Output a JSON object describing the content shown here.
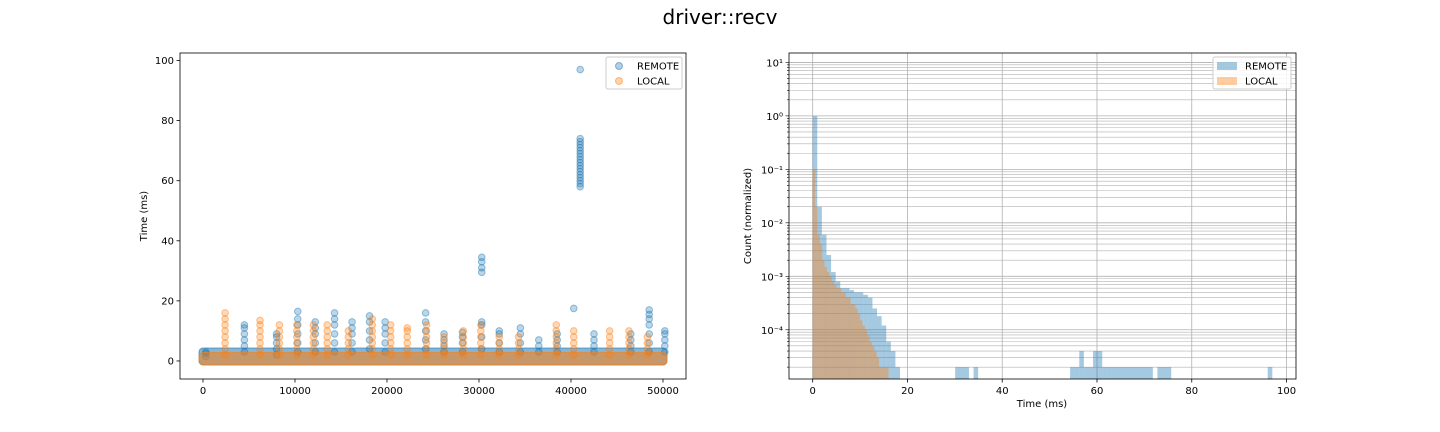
{
  "figure": {
    "title": "driver::recv"
  },
  "colors": {
    "remote": "#1f77b4",
    "local": "#ff7f0e"
  },
  "chart_data": [
    {
      "type": "scatter",
      "title": "",
      "xlabel": "",
      "ylabel": "Time (ms)",
      "xlim": [
        -2500,
        52500
      ],
      "ylim": [
        -6,
        102.5
      ],
      "xticks": [
        0,
        10000,
        20000,
        30000,
        40000,
        50000
      ],
      "xtick_labels": [
        "0",
        "10000",
        "20000",
        "30000",
        "40000",
        "50000"
      ],
      "yticks": [
        0,
        20,
        40,
        60,
        80,
        100
      ],
      "ytick_labels": [
        "0",
        "20",
        "40",
        "60",
        "80",
        "100"
      ],
      "grid": false,
      "legend": {
        "placement": "upper-right",
        "entries": [
          "REMOTE",
          "LOCAL"
        ]
      },
      "series": [
        {
          "name": "REMOTE",
          "color": "#1f77b4",
          "baseline_band": {
            "x_range": [
              0,
              50000
            ],
            "y_range": [
              0,
              3
            ]
          },
          "clusters": [
            {
              "x": 300,
              "values": [
                1.5,
                2.5,
                3
              ]
            },
            {
              "x": 4500,
              "values": [
                3,
                5,
                7,
                9,
                11,
                12
              ]
            },
            {
              "x": 8000,
              "values": [
                2,
                4,
                6,
                8,
                9
              ]
            },
            {
              "x": 10300,
              "values": [
                3,
                6,
                9,
                12,
                14,
                16.5
              ]
            },
            {
              "x": 12200,
              "values": [
                3,
                6,
                9,
                11,
                13
              ]
            },
            {
              "x": 14300,
              "values": [
                3,
                6,
                9,
                12,
                14,
                16
              ]
            },
            {
              "x": 16200,
              "values": [
                3,
                6,
                9,
                11,
                13
              ]
            },
            {
              "x": 18100,
              "values": [
                4,
                7,
                10,
                13,
                15
              ]
            },
            {
              "x": 19800,
              "values": [
                3,
                6,
                9,
                11,
                13
              ]
            },
            {
              "x": 24200,
              "values": [
                4,
                7,
                10,
                13,
                16
              ]
            },
            {
              "x": 26200,
              "values": [
                3,
                5,
                7,
                9
              ]
            },
            {
              "x": 28200,
              "values": [
                3,
                6,
                8,
                9.5
              ]
            },
            {
              "x": 30300,
              "values": [
                4,
                8,
                12,
                13,
                29.5,
                31,
                33,
                34.5
              ]
            },
            {
              "x": 32200,
              "values": [
                3,
                6,
                9,
                10
              ]
            },
            {
              "x": 34500,
              "values": [
                3,
                6,
                9,
                11
              ]
            },
            {
              "x": 36500,
              "values": [
                3,
                5,
                7
              ]
            },
            {
              "x": 38500,
              "values": [
                3,
                5,
                7,
                9
              ]
            },
            {
              "x": 40300,
              "values": [
                17.5
              ]
            },
            {
              "x": 41000,
              "values": [
                58,
                59,
                60,
                61,
                62,
                63,
                64,
                65,
                66,
                67,
                68,
                69,
                70,
                71,
                72,
                73,
                74,
                97
              ]
            },
            {
              "x": 42500,
              "values": [
                3,
                5,
                7,
                9
              ]
            },
            {
              "x": 46500,
              "values": [
                3,
                5,
                7,
                9
              ]
            },
            {
              "x": 48500,
              "values": [
                3,
                6,
                9,
                12,
                14,
                15.5,
                17
              ]
            },
            {
              "x": 50200,
              "values": [
                3,
                5,
                7,
                9,
                10
              ]
            }
          ]
        },
        {
          "name": "LOCAL",
          "color": "#ff7f0e",
          "baseline_band": {
            "x_range": [
              0,
              50000
            ],
            "y_range": [
              0,
              1.5
            ]
          },
          "clusters": [
            {
              "x": 2400,
              "values": [
                2,
                4,
                6,
                8,
                10,
                12,
                14,
                16
              ]
            },
            {
              "x": 6200,
              "values": [
                2,
                4,
                6,
                8,
                10,
                12,
                13.5
              ]
            },
            {
              "x": 8300,
              "values": [
                2,
                4,
                6,
                8,
                10,
                12
              ]
            },
            {
              "x": 10200,
              "values": [
                2,
                4,
                6,
                8,
                10,
                12
              ]
            },
            {
              "x": 12000,
              "values": [
                2,
                4,
                6,
                8,
                10,
                12
              ]
            },
            {
              "x": 13500,
              "values": [
                2,
                4,
                6,
                8,
                10,
                12
              ]
            },
            {
              "x": 15800,
              "values": [
                2,
                4,
                6,
                8,
                10
              ]
            },
            {
              "x": 18400,
              "values": [
                2,
                4,
                6,
                8,
                10,
                12,
                14
              ]
            },
            {
              "x": 20400,
              "values": [
                2,
                4,
                6,
                8,
                10,
                12
              ]
            },
            {
              "x": 22200,
              "values": [
                2,
                4,
                6,
                8,
                10,
                11
              ]
            },
            {
              "x": 24300,
              "values": [
                2,
                4,
                6,
                8,
                10,
                12
              ]
            },
            {
              "x": 26200,
              "values": [
                2,
                4,
                6,
                8
              ]
            },
            {
              "x": 28300,
              "values": [
                2,
                4,
                6,
                8,
                10
              ]
            },
            {
              "x": 30200,
              "values": [
                2,
                4,
                6,
                8,
                10,
                12
              ]
            },
            {
              "x": 32200,
              "values": [
                2,
                4,
                6,
                8
              ]
            },
            {
              "x": 34300,
              "values": [
                2,
                4,
                6,
                8
              ]
            },
            {
              "x": 38400,
              "values": [
                2,
                4,
                6,
                8,
                10,
                12
              ]
            },
            {
              "x": 40300,
              "values": [
                2,
                4,
                6,
                8,
                10
              ]
            },
            {
              "x": 44200,
              "values": [
                2,
                4,
                6,
                8,
                10
              ]
            },
            {
              "x": 46300,
              "values": [
                2,
                4,
                6,
                8,
                10
              ]
            },
            {
              "x": 48300,
              "values": [
                2,
                4,
                6,
                8
              ]
            }
          ]
        }
      ]
    },
    {
      "type": "bar",
      "subtype": "histogram",
      "title": "",
      "xlabel": "Time (ms)",
      "ylabel": "Count (normalized)",
      "yscale": "log",
      "xlim": [
        -5,
        102
      ],
      "ylim": [
        1.2e-05,
        15
      ],
      "xticks": [
        0,
        20,
        40,
        60,
        80,
        100
      ],
      "xtick_labels": [
        "0",
        "20",
        "40",
        "60",
        "80",
        "100"
      ],
      "yticks": [
        0.0001,
        0.001,
        0.01,
        0.1,
        1,
        10
      ],
      "ytick_labels": [
        "10⁻⁴",
        "10⁻³",
        "10⁻²",
        "10⁻¹",
        "10⁰",
        "10¹"
      ],
      "grid": true,
      "legend": {
        "placement": "upper-right",
        "entries": [
          "REMOTE",
          "LOCAL"
        ]
      },
      "series": [
        {
          "name": "REMOTE",
          "color": "#1f77b4",
          "bins": [
            [
              0,
              0.97,
              1.0
            ],
            [
              0.97,
              1.94,
              0.02
            ],
            [
              1.94,
              2.91,
              0.006
            ],
            [
              2.91,
              3.88,
              0.0025
            ],
            [
              3.88,
              4.85,
              0.0012
            ],
            [
              4.85,
              5.82,
              0.0008
            ],
            [
              5.82,
              6.79,
              0.0006
            ],
            [
              6.79,
              7.76,
              0.0006
            ],
            [
              7.76,
              8.73,
              0.00055
            ],
            [
              8.73,
              9.7,
              0.0005
            ],
            [
              9.7,
              10.67,
              0.0005
            ],
            [
              10.67,
              11.64,
              0.00045
            ],
            [
              11.64,
              12.61,
              0.0004
            ],
            [
              12.61,
              13.58,
              0.00025
            ],
            [
              13.58,
              14.55,
              0.00018
            ],
            [
              14.55,
              15.52,
              0.00012
            ],
            [
              15.52,
              16.49,
              6e-05
            ],
            [
              16.49,
              17.46,
              4e-05
            ],
            [
              17.46,
              18.43,
              2e-05
            ],
            [
              30.07,
              32.98,
              2e-05
            ],
            [
              33.95,
              34.92,
              2e-05
            ],
            [
              54.32,
              56.26,
              2e-05
            ],
            [
              56.26,
              57.23,
              4e-05
            ],
            [
              57.23,
              58.2,
              2e-05
            ],
            [
              58.2,
              59.17,
              2e-05
            ],
            [
              59.17,
              61.11,
              4e-05
            ],
            [
              61.11,
              62.08,
              2e-05
            ],
            [
              62.08,
              63.05,
              2e-05
            ],
            [
              63.05,
              71.78,
              2e-05
            ],
            [
              72.75,
              75.66,
              2e-05
            ],
            [
              96.03,
              97.0,
              2e-05
            ]
          ]
        },
        {
          "name": "LOCAL",
          "color": "#ff7f0e",
          "bins": [
            [
              0,
              0.5,
              0.1
            ],
            [
              0.5,
              1.0,
              0.02
            ],
            [
              1.0,
              1.5,
              0.006
            ],
            [
              1.5,
              2.0,
              0.004
            ],
            [
              2.0,
              2.5,
              0.002
            ],
            [
              2.5,
              3.0,
              0.0015
            ],
            [
              3.0,
              3.5,
              0.0012
            ],
            [
              3.5,
              4.0,
              0.001
            ],
            [
              4.0,
              4.5,
              0.0008
            ],
            [
              4.5,
              5.0,
              0.0007
            ],
            [
              5.0,
              5.5,
              0.0006
            ],
            [
              5.5,
              6.0,
              0.0006
            ],
            [
              6.0,
              6.5,
              0.0005
            ],
            [
              6.5,
              7.0,
              0.0005
            ],
            [
              7.0,
              7.5,
              0.0004
            ],
            [
              7.5,
              8.0,
              0.0004
            ],
            [
              8.0,
              8.5,
              0.0003
            ],
            [
              8.5,
              9.0,
              0.0003
            ],
            [
              9.0,
              9.5,
              0.00025
            ],
            [
              9.5,
              10.0,
              0.0002
            ],
            [
              10.0,
              10.5,
              0.00015
            ],
            [
              10.5,
              11.0,
              0.00012
            ],
            [
              11.0,
              11.5,
              0.0001
            ],
            [
              11.5,
              12.0,
              8e-05
            ],
            [
              12.0,
              12.5,
              6e-05
            ],
            [
              12.5,
              13.0,
              5e-05
            ],
            [
              13.0,
              13.5,
              4e-05
            ],
            [
              13.5,
              14.0,
              3e-05
            ],
            [
              14.0,
              14.5,
              2e-05
            ],
            [
              14.5,
              15.0,
              2e-05
            ],
            [
              15.0,
              15.5,
              2e-05
            ],
            [
              15.5,
              16.0,
              2e-05
            ]
          ]
        }
      ]
    }
  ]
}
